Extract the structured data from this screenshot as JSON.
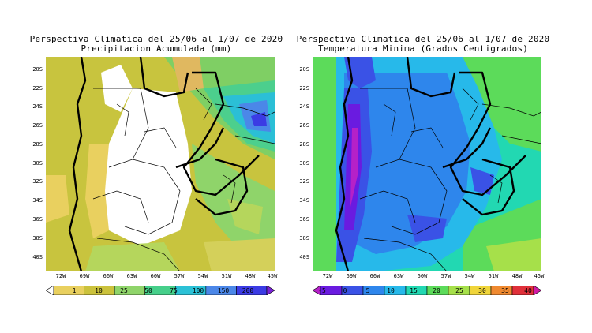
{
  "left": {
    "title_line1": "Perspectiva Climatica del 25/06 al 1/07 de 2020",
    "title_line2": "Precipitacion Acumulada (mm)",
    "lat_labels": [
      "20S",
      "22S",
      "24S",
      "26S",
      "28S",
      "30S",
      "32S",
      "34S",
      "36S",
      "38S",
      "40S"
    ],
    "lon_labels": [
      "72W",
      "69W",
      "66W",
      "63W",
      "60W",
      "57W",
      "54W",
      "51W",
      "48W",
      "45W"
    ],
    "colorbar": {
      "labels": [
        "1",
        "10",
        "25",
        "50",
        "75",
        "100",
        "150",
        "200"
      ],
      "colors": [
        "#ffffff",
        "#e9d05f",
        "#cbc23c",
        "#8fd46a",
        "#46cf8a",
        "#2bc1d6",
        "#4b87e8",
        "#3b3be4",
        "#7a22d8"
      ]
    }
  },
  "right": {
    "title_line1": "Perspectiva Climatica del 25/06 al 1/07 de 2020",
    "title_line2": "Temperatura Minima (Grados Centigrados)",
    "lat_labels": [
      "20S",
      "22S",
      "24S",
      "26S",
      "28S",
      "30S",
      "32S",
      "34S",
      "36S",
      "38S",
      "40S"
    ],
    "lon_labels": [
      "72W",
      "69W",
      "66W",
      "63W",
      "60W",
      "57W",
      "54W",
      "51W",
      "48W",
      "45W"
    ],
    "colorbar": {
      "labels": [
        "-5",
        "0",
        "5",
        "10",
        "15",
        "20",
        "25",
        "30",
        "35",
        "40"
      ],
      "colors": [
        "#b521c8",
        "#6a1be0",
        "#3a52e6",
        "#2e86ec",
        "#27b9ea",
        "#22d8b2",
        "#5cdb5a",
        "#a6e04a",
        "#f0d53a",
        "#f08a30",
        "#e0303a",
        "#d21aa5"
      ]
    }
  }
}
